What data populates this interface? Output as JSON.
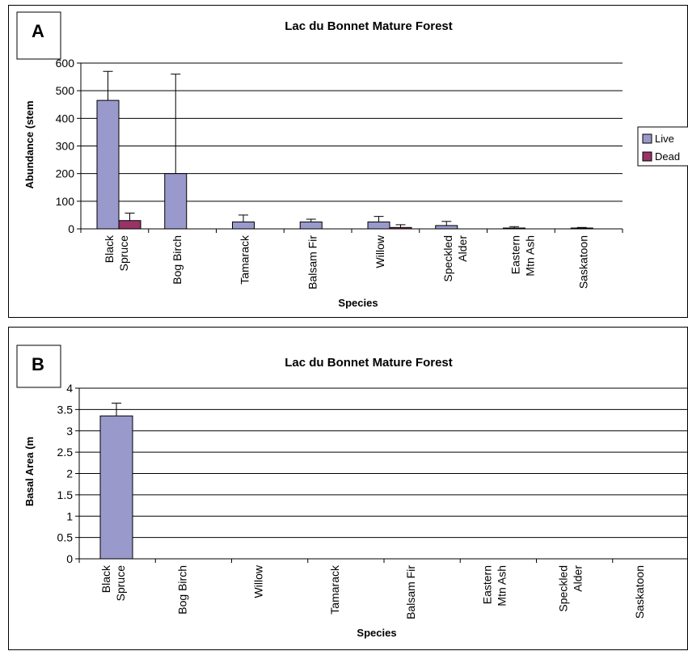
{
  "colors": {
    "live": "#9999CC",
    "dead": "#993366",
    "grid": "#000000"
  },
  "charts": [
    {
      "panel_letter": "A",
      "title": "Lac du Bonnet Mature Forest",
      "xlabel": "Species",
      "ylabel": "Abundance (stem",
      "y_ticks": [
        "0",
        "100",
        "200",
        "300",
        "400",
        "500",
        "600"
      ],
      "categories": [
        [
          "Black",
          "Spruce"
        ],
        [
          "Bog Birch"
        ],
        [
          "Tamarack"
        ],
        [
          "Balsam Fir"
        ],
        [
          "Willow"
        ],
        [
          "Speckled",
          "Alder"
        ],
        [
          "Eastern",
          "Mtn Ash"
        ],
        [
          "Saskatoon"
        ]
      ],
      "legend": [
        "Live",
        "Dead"
      ]
    },
    {
      "panel_letter": "B",
      "title": "Lac du Bonnet Mature Forest",
      "xlabel": "Species",
      "ylabel": "Basal Area (m",
      "y_ticks": [
        "0",
        "0.5",
        "1",
        "1.5",
        "2",
        "2.5",
        "3",
        "3.5",
        "4"
      ],
      "categories": [
        [
          "Black",
          "Spruce"
        ],
        [
          "Bog Birch"
        ],
        [
          "Willow"
        ],
        [
          "Tamarack"
        ],
        [
          "Balsam Fir"
        ],
        [
          "Eastern",
          "Mtn Ash"
        ],
        [
          "Speckled",
          "Alder"
        ],
        [
          "Saskatoon"
        ]
      ],
      "legend": []
    }
  ],
  "chart_data": [
    {
      "type": "bar",
      "title": "Lac du Bonnet Mature Forest",
      "xlabel": "Species",
      "ylabel": "Abundance (stem",
      "ylim": [
        0,
        600
      ],
      "grid": true,
      "legend_position": "right",
      "categories": [
        "Black Spruce",
        "Bog Birch",
        "Tamarack",
        "Balsam Fir",
        "Willow",
        "Speckled Alder",
        "Eastern Mtn Ash",
        "Saskatoon"
      ],
      "series": [
        {
          "name": "Live",
          "values": [
            465,
            200,
            25,
            25,
            25,
            12,
            3,
            3
          ],
          "error": [
            105,
            360,
            25,
            10,
            20,
            15,
            5,
            2
          ]
        },
        {
          "name": "Dead",
          "values": [
            30,
            0,
            0,
            0,
            5,
            0,
            0,
            0
          ],
          "error": [
            27,
            0,
            0,
            0,
            10,
            0,
            0,
            0
          ]
        }
      ]
    },
    {
      "type": "bar",
      "title": "Lac du Bonnet Mature Forest",
      "xlabel": "Species",
      "ylabel": "Basal Area (m",
      "ylim": [
        0,
        4
      ],
      "grid": true,
      "categories": [
        "Black Spruce",
        "Bog Birch",
        "Willow",
        "Tamarack",
        "Balsam Fir",
        "Eastern Mtn Ash",
        "Speckled Alder",
        "Saskatoon"
      ],
      "series": [
        {
          "name": "",
          "values": [
            3.35,
            0,
            0,
            0,
            0,
            0,
            0,
            0
          ],
          "error": [
            0.3,
            0,
            0,
            0,
            0,
            0,
            0,
            0
          ]
        }
      ]
    }
  ]
}
